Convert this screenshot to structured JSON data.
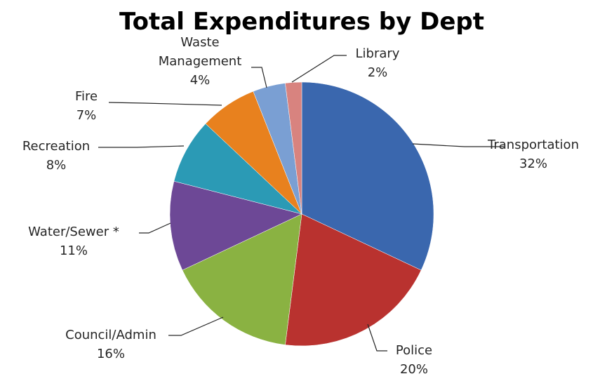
{
  "chart_data": {
    "type": "pie",
    "title": "Total Expenditures by Dept",
    "slices": [
      {
        "name": "Transportation",
        "value": 32,
        "label": "32%",
        "color": "#3a67ae"
      },
      {
        "name": "Police",
        "value": 20,
        "label": "20%",
        "color": "#b9322f"
      },
      {
        "name": "Council/Admin",
        "value": 16,
        "label": "16%",
        "color": "#8ab242"
      },
      {
        "name": "Water/Sewer *",
        "value": 11,
        "label": "11%",
        "color": "#6d4896"
      },
      {
        "name": "Recreation",
        "value": 8,
        "label": "8%",
        "color": "#2b9ab5"
      },
      {
        "name": "Fire",
        "value": 7,
        "label": "7%",
        "color": "#e8811e"
      },
      {
        "name": "Waste Management",
        "value": 4,
        "label": "4%",
        "color": "#7a9fd3"
      },
      {
        "name": "Library",
        "value": 2,
        "label": "2%",
        "color": "#d8837f"
      }
    ],
    "legend": "none",
    "label_style": "category name and percentage with leader lines"
  }
}
